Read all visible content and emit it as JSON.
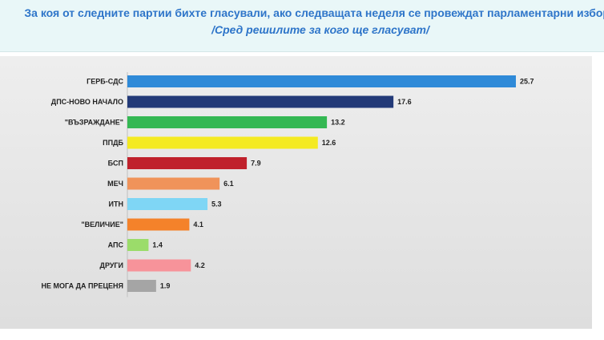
{
  "header": {
    "title": "За коя от следните партии бихте  гласували,  ако следващата неделя се провеждат парламентарни избори",
    "subtitle": "/Сред решилите за кого ще гласуват/"
  },
  "chart_data": {
    "type": "bar",
    "orientation": "horizontal",
    "categories": [
      "ГЕРБ-СДС",
      "ДПС-НОВО НАЧАЛО",
      "\"ВЪЗРАЖДАНЕ\"",
      "ППДБ",
      "БСП",
      "МЕЧ",
      "ИТН",
      "\"ВЕЛИЧИЕ\"",
      "АПС",
      "ДРУГИ",
      "НЕ МОГА ДА ПРЕЦЕНЯ"
    ],
    "values": [
      25.7,
      17.6,
      13.2,
      12.6,
      7.9,
      6.1,
      5.3,
      4.1,
      1.4,
      4.2,
      1.9
    ],
    "value_labels": [
      "25.7",
      "17.6",
      "13.2",
      "12.6",
      "7.9",
      "6.1",
      "5.3",
      "4.1",
      "1.4",
      "4.2",
      "1.9"
    ],
    "colors": [
      "#2f8ad8",
      "#233a78",
      "#34b853",
      "#f4ea21",
      "#c0212c",
      "#f0935a",
      "#7fd6f5",
      "#f4822a",
      "#9bdc6a",
      "#f7939a",
      "#a5a5a5"
    ],
    "xlim": [
      0,
      25.7
    ],
    "grid": false,
    "legend": false
  }
}
